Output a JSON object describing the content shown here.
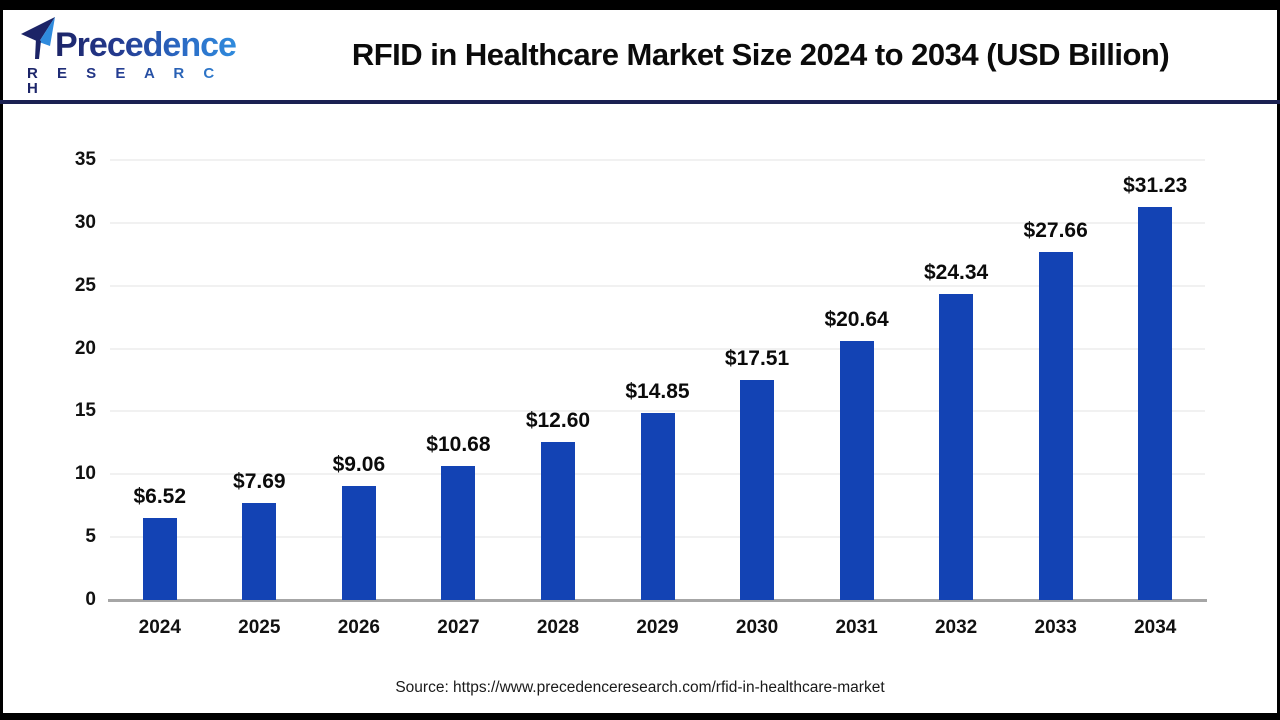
{
  "header": {
    "logo": {
      "name": "Precedence",
      "subtitle": "R E S E A R C H"
    },
    "title": "RFID in Healthcare Market Size 2024 to 2034 (USD Billion)"
  },
  "chart_data": {
    "type": "bar",
    "title": "RFID in Healthcare Market Size 2024 to 2034 (USD Billion)",
    "categories": [
      "2024",
      "2025",
      "2026",
      "2027",
      "2028",
      "2029",
      "2030",
      "2031",
      "2032",
      "2033",
      "2034"
    ],
    "values": [
      6.52,
      7.69,
      9.06,
      10.68,
      12.6,
      14.85,
      17.51,
      20.64,
      24.34,
      27.66,
      31.23
    ],
    "value_labels": [
      "$6.52",
      "$7.69",
      "$9.06",
      "$10.68",
      "$12.60",
      "$14.85",
      "$17.51",
      "$20.64",
      "$24.34",
      "$27.66",
      "$31.23"
    ],
    "xlabel": "",
    "ylabel": "",
    "ylim": [
      0,
      35
    ],
    "ytick_step": 5,
    "ytick_labels": [
      "0",
      "5",
      "10",
      "15",
      "20",
      "25",
      "30",
      "35"
    ],
    "grid": true,
    "legend": "none",
    "bar_color": "#1343b4"
  },
  "source": {
    "text": "Source: https://www.precedenceresearch.com/rfid-in-healthcare-market"
  }
}
